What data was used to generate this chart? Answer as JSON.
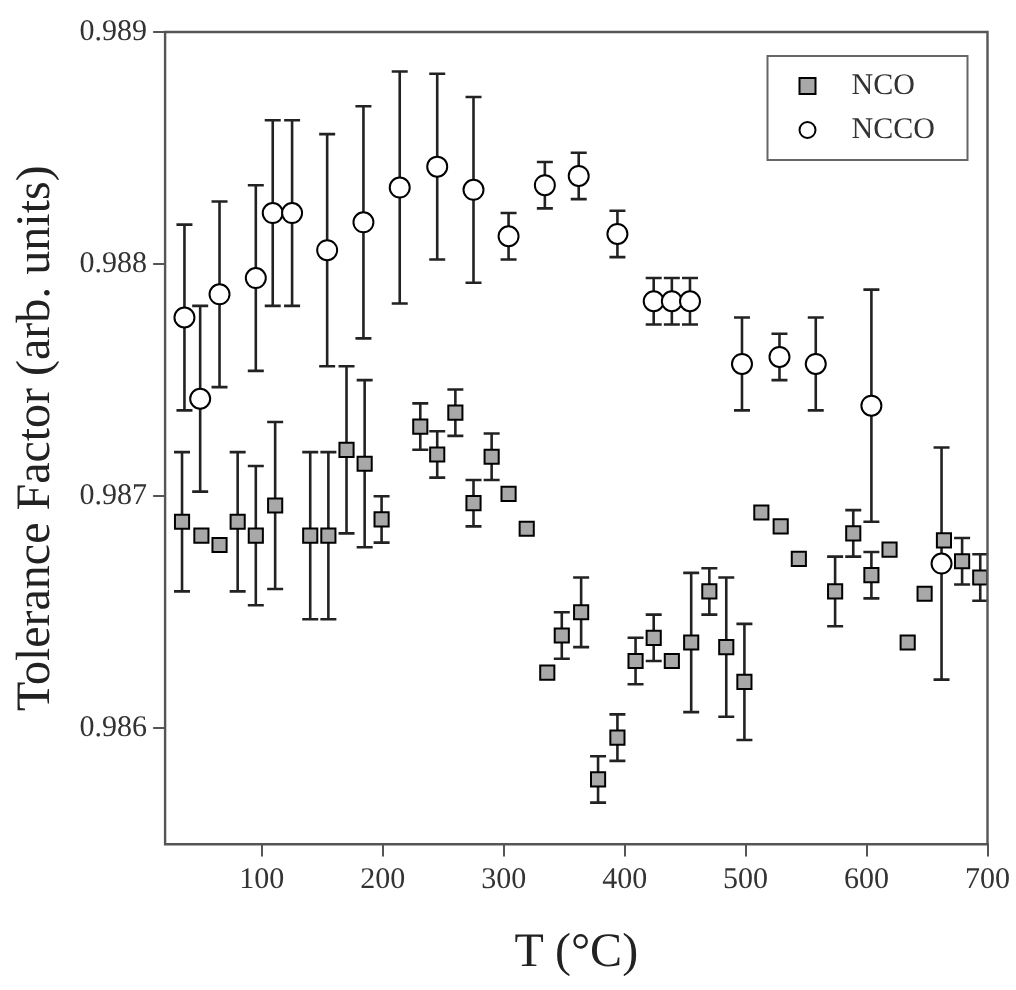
{
  "chart_data": {
    "type": "scatter",
    "xlabel": "T (°C)",
    "ylabel": "Tolerance Factor (arb. units)",
    "xlim": [
      20,
      700
    ],
    "xticks": [
      100,
      200,
      300,
      400,
      500,
      600,
      700
    ],
    "ylim": [
      0.9855,
      0.989
    ],
    "yticks": [
      0.986,
      0.987,
      0.988,
      0.989
    ],
    "grid": false,
    "legend": "top right",
    "series": [
      {
        "name": "NCO",
        "color": "#a8a8a8",
        "marker": "square",
        "x": [
          34,
          50,
          65,
          80,
          95,
          111,
          140,
          155,
          170,
          185,
          199,
          231,
          245,
          260,
          275,
          290,
          304,
          319,
          336,
          348,
          364,
          378,
          394,
          409,
          424,
          439,
          455,
          470,
          484,
          499,
          513,
          529,
          544,
          574,
          589,
          604,
          619,
          634,
          648,
          664,
          679,
          694
        ],
        "values": [
          0.98689,
          0.98683,
          0.98679,
          0.98689,
          0.98683,
          0.98696,
          0.98683,
          0.98683,
          0.9872,
          0.98714,
          0.9869,
          0.9873,
          0.98718,
          0.98736,
          0.98697,
          0.98717,
          0.98701,
          0.98686,
          0.98624,
          0.9864,
          0.9865,
          0.98578,
          0.98596,
          0.98629,
          0.98639,
          0.98629,
          0.98637,
          0.98659,
          0.98635,
          0.9862,
          0.98693,
          0.98687,
          0.98673,
          0.98659,
          0.98684,
          0.98666,
          0.98677,
          0.98637,
          0.98658,
          0.98681,
          0.98672,
          0.98665
        ],
        "errors": [
          0.0003,
          null,
          null,
          0.0003,
          0.0003,
          0.00036,
          0.00036,
          0.00036,
          0.00036,
          0.00036,
          0.0001,
          0.0001,
          0.0001,
          0.0001,
          0.0001,
          0.0001,
          null,
          null,
          null,
          0.0001,
          0.00015,
          0.0001,
          0.0001,
          0.0001,
          0.0001,
          null,
          0.0003,
          0.0001,
          0.0003,
          0.00025,
          null,
          null,
          null,
          0.00015,
          0.0001,
          0.0001,
          null,
          null,
          null,
          null,
          0.0001,
          0.0001
        ]
      },
      {
        "name": "NCCO",
        "color": "#ffffff",
        "marker": "circle",
        "x": [
          36,
          49,
          65,
          95,
          109,
          125,
          154,
          184,
          214,
          245,
          275,
          304,
          334,
          362,
          394,
          424,
          439,
          454,
          497,
          528,
          558,
          604,
          662
        ],
        "values": [
          0.98777,
          0.98742,
          0.98787,
          0.98794,
          0.98822,
          0.98822,
          0.98806,
          0.98818,
          0.98833,
          0.98842,
          0.98832,
          0.98812,
          0.98834,
          0.98838,
          0.98813,
          0.98784,
          0.98784,
          0.98784,
          0.98757,
          0.9876,
          0.98757,
          0.98739,
          0.98671
        ],
        "errors": [
          0.0004,
          0.0004,
          0.0004,
          0.0004,
          0.0004,
          0.0004,
          0.0005,
          0.0005,
          0.0005,
          0.0004,
          0.0004,
          0.0001,
          0.0001,
          0.0001,
          0.0001,
          0.0001,
          0.0001,
          0.0001,
          0.0002,
          0.0001,
          0.0002,
          0.0005,
          0.0005
        ]
      }
    ]
  }
}
